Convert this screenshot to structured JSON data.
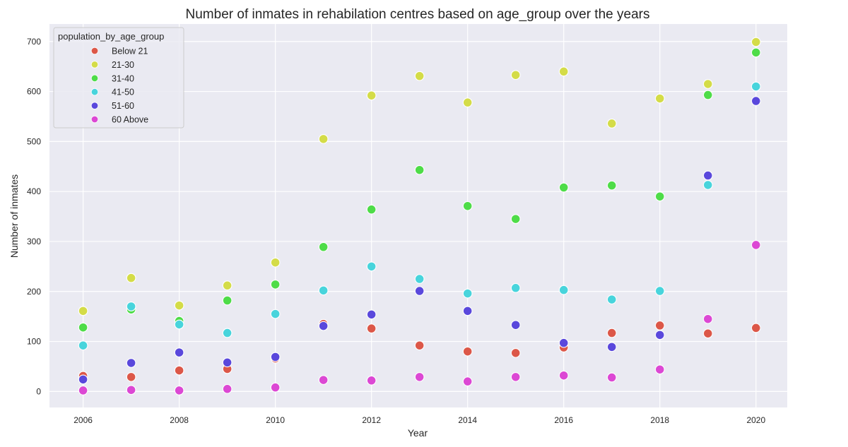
{
  "chart_data": {
    "type": "scatter",
    "title": "Number of inmates in rehabilation centres based on age_group over the years",
    "xlabel": "Year",
    "ylabel": "Number of inmates",
    "xlim": [
      2005.3,
      2020.65
    ],
    "ylim": [
      -32,
      735
    ],
    "xticks": [
      2006,
      2008,
      2010,
      2012,
      2014,
      2016,
      2018,
      2020
    ],
    "yticks": [
      0,
      100,
      200,
      300,
      400,
      500,
      600,
      700
    ],
    "grid": true,
    "legend": {
      "title": "population_by_age_group",
      "placement": "upper-left"
    },
    "x": [
      2006,
      2007,
      2008,
      2009,
      2010,
      2011,
      2012,
      2013,
      2014,
      2015,
      2016,
      2017,
      2018,
      2019,
      2020
    ],
    "series": [
      {
        "name": "Below 21",
        "color": "#dc5748",
        "values": [
          31,
          29,
          42,
          45,
          66,
          135,
          126,
          92,
          80,
          77,
          88,
          117,
          132,
          116,
          127
        ]
      },
      {
        "name": "21-30",
        "color": "#d4dc48",
        "values": [
          161,
          227,
          172,
          212,
          258,
          505,
          592,
          631,
          578,
          633,
          640,
          536,
          586,
          615,
          699
        ]
      },
      {
        "name": "31-40",
        "color": "#4edc48",
        "values": [
          128,
          164,
          141,
          182,
          214,
          289,
          364,
          443,
          371,
          345,
          408,
          412,
          390,
          593,
          678
        ]
      },
      {
        "name": "41-50",
        "color": "#48d4dc",
        "values": [
          92,
          170,
          134,
          117,
          155,
          202,
          250,
          225,
          196,
          207,
          203,
          184,
          201,
          413,
          610
        ]
      },
      {
        "name": "51-60",
        "color": "#5a48dc",
        "values": [
          24,
          57,
          78,
          58,
          69,
          131,
          154,
          201,
          161,
          133,
          97,
          89,
          113,
          432,
          581
        ]
      },
      {
        "name": "60 Above",
        "color": "#dc48d4",
        "values": [
          2,
          3,
          2,
          5,
          8,
          23,
          22,
          29,
          20,
          29,
          32,
          28,
          44,
          145,
          293
        ]
      }
    ]
  },
  "style": {
    "plot_background": "#eaeaf2",
    "grid_color": "#ffffff",
    "text_color": "#262626",
    "marker_edge": "#ffffff"
  }
}
